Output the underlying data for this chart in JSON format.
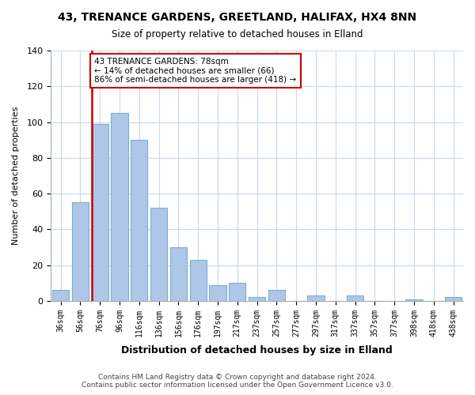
{
  "title": "43, TRENANCE GARDENS, GREETLAND, HALIFAX, HX4 8NN",
  "subtitle": "Size of property relative to detached houses in Elland",
  "xlabel": "Distribution of detached houses by size in Elland",
  "ylabel": "Number of detached properties",
  "categories": [
    "36sqm",
    "56sqm",
    "76sqm",
    "96sqm",
    "116sqm",
    "136sqm",
    "156sqm",
    "176sqm",
    "197sqm",
    "217sqm",
    "237sqm",
    "257sqm",
    "277sqm",
    "297sqm",
    "317sqm",
    "337sqm",
    "357sqm",
    "377sqm",
    "398sqm",
    "418sqm",
    "438sqm"
  ],
  "values": [
    6,
    55,
    99,
    105,
    90,
    52,
    30,
    23,
    9,
    10,
    2,
    6,
    0,
    3,
    0,
    3,
    0,
    0,
    1,
    0,
    2
  ],
  "bar_color": "#aec6e8",
  "bar_edge_color": "#7aafd4",
  "marker_line_color": "#cc0000",
  "annotation_text": "43 TRENANCE GARDENS: 78sqm\n← 14% of detached houses are smaller (66)\n86% of semi-detached houses are larger (418) →",
  "annotation_box_color": "#ffffff",
  "annotation_box_edge_color": "#cc0000",
  "ylim": [
    0,
    140
  ],
  "yticks": [
    0,
    20,
    40,
    60,
    80,
    100,
    120,
    140
  ],
  "footer_line1": "Contains HM Land Registry data © Crown copyright and database right 2024.",
  "footer_line2": "Contains public sector information licensed under the Open Government Licence v3.0.",
  "background_color": "#ffffff",
  "grid_color": "#c8d8e8"
}
